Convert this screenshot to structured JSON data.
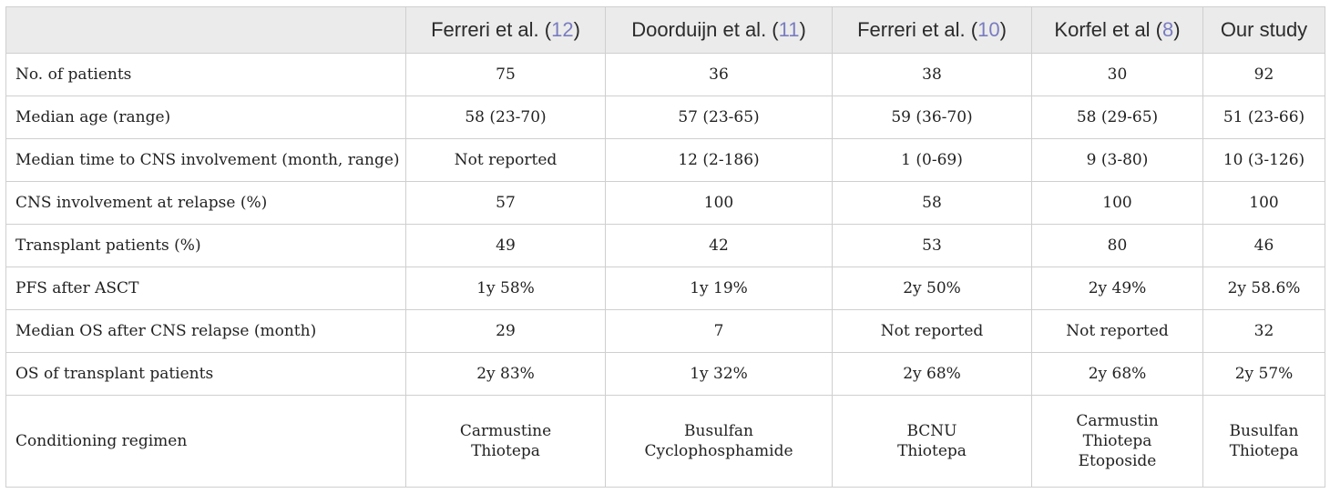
{
  "headers": [
    {
      "author": "Ferreri et al. (",
      "ref": "12",
      "close": ")"
    },
    {
      "author": "Doorduijn et al. (",
      "ref": "11",
      "close": ")"
    },
    {
      "author": "Ferreri et al. (",
      "ref": "10",
      "close": ")"
    },
    {
      "author": "Korfel et al (",
      "ref": "8",
      "close": ")"
    },
    {
      "author": "Our study",
      "ref": "",
      "close": ""
    }
  ],
  "rows": [
    {
      "label": "No. of patients",
      "values": [
        "75",
        "36",
        "38",
        "30",
        "92"
      ]
    },
    {
      "label": "Median age (range)",
      "values": [
        "58 (23-70)",
        "57 (23-65)",
        "59 (36-70)",
        "58 (29-65)",
        "51 (23-66)"
      ]
    },
    {
      "label": "Median time to CNS involvement (month, range)",
      "values": [
        "Not reported",
        "12 (2-186)",
        "1 (0-69)",
        "9 (3-80)",
        "10 (3-126)"
      ]
    },
    {
      "label": "CNS involvement at relapse (%)",
      "values": [
        "57",
        "100",
        "58",
        "100",
        "100"
      ]
    },
    {
      "label": "Transplant patients (%)",
      "values": [
        "49",
        "42",
        "53",
        "80",
        "46"
      ]
    },
    {
      "label": "PFS after ASCT",
      "values": [
        "1y 58%",
        "1y 19%",
        "2y 50%",
        "2y 49%",
        "2y 58.6%"
      ]
    },
    {
      "label": "Median OS after CNS relapse (month)",
      "values": [
        "29",
        "7",
        "Not reported",
        "Not reported",
        "32"
      ]
    },
    {
      "label": "OS of transplant patients",
      "values": [
        "2y 83%",
        "1y 32%",
        "2y 68%",
        "2y 68%",
        "2y 57%"
      ]
    }
  ],
  "conditioning": {
    "label": "Conditioning regimen",
    "values": [
      [
        "Carmustine",
        "Thiotepa"
      ],
      [
        "Busulfan",
        "Cyclophosphamide"
      ],
      [
        "BCNU",
        "Thiotepa"
      ],
      [
        "Carmustin",
        "Thiotepa",
        "Etoposide"
      ],
      [
        "Busulfan",
        "Thiotepa"
      ]
    ]
  },
  "colors": {
    "header_bg": "#ebebeb",
    "border": "#cfcfcf",
    "reference_link": "#7a7cc0"
  }
}
